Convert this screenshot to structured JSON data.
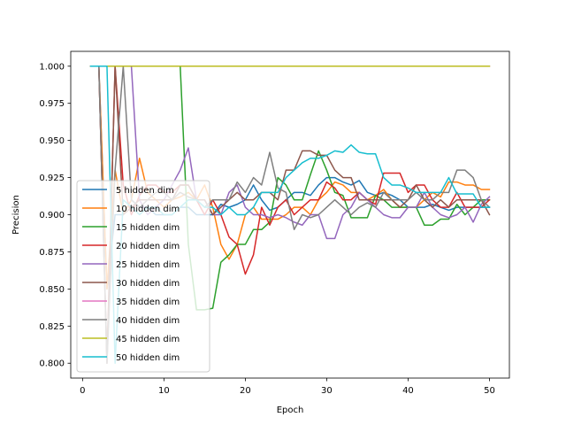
{
  "chart_data": {
    "type": "line",
    "title": "",
    "xlabel": "Epoch",
    "ylabel": "Precision",
    "xlim": [
      -1.45,
      52.45
    ],
    "ylim": [
      0.79,
      1.01
    ],
    "xticks": [
      0,
      10,
      20,
      30,
      40,
      50
    ],
    "yticks": [
      0.8,
      0.825,
      0.85,
      0.875,
      0.9,
      0.925,
      0.95,
      0.975,
      1.0
    ],
    "ytick_labels": [
      "0.800",
      "0.825",
      "0.850",
      "0.875",
      "0.900",
      "0.925",
      "0.950",
      "0.975",
      "1.000"
    ],
    "grid": false,
    "legend_position": "lower left",
    "x": [
      1,
      2,
      3,
      4,
      5,
      6,
      7,
      8,
      9,
      10,
      11,
      12,
      13,
      14,
      15,
      16,
      17,
      18,
      19,
      20,
      21,
      22,
      23,
      24,
      25,
      26,
      27,
      28,
      29,
      30,
      31,
      32,
      33,
      34,
      35,
      36,
      37,
      38,
      39,
      40,
      41,
      42,
      43,
      44,
      45,
      46,
      47,
      48,
      49,
      50
    ],
    "series": [
      {
        "name": "5 hidden dim",
        "color": "#1f77b4",
        "values": [
          1.0,
          1.0,
          0.85,
          0.9,
          0.9,
          0.91,
          0.905,
          0.905,
          0.9,
          0.9,
          0.9,
          0.905,
          0.905,
          0.9,
          0.9,
          0.9,
          0.907,
          0.905,
          0.907,
          0.91,
          0.92,
          0.91,
          0.903,
          0.905,
          0.91,
          0.915,
          0.915,
          0.913,
          0.92,
          0.925,
          0.925,
          0.922,
          0.92,
          0.923,
          0.915,
          0.913,
          0.915,
          0.913,
          0.91,
          0.905,
          0.905,
          0.905,
          0.907,
          0.905,
          0.903,
          0.905,
          0.905,
          0.905,
          0.905,
          0.905
        ]
      },
      {
        "name": "10 hidden dim",
        "color": "#ff7f0e",
        "values": [
          1.0,
          1.0,
          0.85,
          0.93,
          0.9,
          0.91,
          0.938,
          0.915,
          0.91,
          0.905,
          0.91,
          0.912,
          0.915,
          0.91,
          0.92,
          0.905,
          0.88,
          0.87,
          0.88,
          0.9,
          0.905,
          0.897,
          0.897,
          0.897,
          0.9,
          0.905,
          0.905,
          0.9,
          0.91,
          0.915,
          0.922,
          0.92,
          0.915,
          0.915,
          0.91,
          0.913,
          0.917,
          0.91,
          0.905,
          0.905,
          0.905,
          0.91,
          0.915,
          0.912,
          0.922,
          0.922,
          0.92,
          0.92,
          0.917,
          0.917
        ]
      },
      {
        "name": "15 hidden dim",
        "color": "#2ca02c",
        "values": [
          1.0,
          1.0,
          1.0,
          1.0,
          1.0,
          1.0,
          1.0,
          1.0,
          1.0,
          1.0,
          1.0,
          1.0,
          0.88,
          0.836,
          0.836,
          0.837,
          0.868,
          0.873,
          0.88,
          0.88,
          0.89,
          0.89,
          0.895,
          0.925,
          0.92,
          0.91,
          0.91,
          0.927,
          0.943,
          0.93,
          0.915,
          0.913,
          0.898,
          0.898,
          0.898,
          0.913,
          0.91,
          0.905,
          0.905,
          0.905,
          0.905,
          0.893,
          0.893,
          0.897,
          0.897,
          0.907,
          0.9,
          0.905,
          0.91,
          0.91
        ]
      },
      {
        "name": "20 hidden dim",
        "color": "#d62728",
        "values": [
          1.0,
          1.0,
          0.8,
          1.0,
          0.92,
          0.9,
          0.913,
          0.92,
          0.92,
          0.915,
          0.915,
          0.92,
          0.92,
          0.91,
          0.9,
          0.91,
          0.9,
          0.885,
          0.88,
          0.86,
          0.873,
          0.905,
          0.893,
          0.905,
          0.91,
          0.9,
          0.905,
          0.91,
          0.91,
          0.922,
          0.918,
          0.91,
          0.91,
          0.915,
          0.91,
          0.907,
          0.928,
          0.928,
          0.928,
          0.915,
          0.92,
          0.92,
          0.91,
          0.905,
          0.905,
          0.915,
          0.905,
          0.905,
          0.905,
          0.91
        ]
      },
      {
        "name": "25 hidden dim",
        "color": "#9467bd",
        "values": [
          1.0,
          1.0,
          1.0,
          1.0,
          1.0,
          1.0,
          0.91,
          0.9,
          0.905,
          0.91,
          0.92,
          0.93,
          0.945,
          0.91,
          0.91,
          0.9,
          0.9,
          0.915,
          0.92,
          0.905,
          0.9,
          0.9,
          0.898,
          0.9,
          0.898,
          0.895,
          0.893,
          0.9,
          0.9,
          0.884,
          0.884,
          0.9,
          0.905,
          0.915,
          0.91,
          0.905,
          0.9,
          0.898,
          0.898,
          0.905,
          0.905,
          0.915,
          0.905,
          0.9,
          0.898,
          0.9,
          0.905,
          0.895,
          0.907,
          0.912
        ]
      },
      {
        "name": "30 hidden dim",
        "color": "#8c564b",
        "values": [
          1.0,
          1.0,
          0.8,
          1.0,
          0.9,
          0.905,
          0.91,
          0.91,
          0.91,
          0.91,
          0.91,
          0.92,
          0.92,
          0.91,
          0.91,
          0.9,
          0.905,
          0.91,
          0.915,
          0.91,
          0.91,
          0.915,
          0.915,
          0.91,
          0.93,
          0.93,
          0.943,
          0.943,
          0.94,
          0.94,
          0.93,
          0.925,
          0.925,
          0.91,
          0.91,
          0.91,
          0.91,
          0.91,
          0.905,
          0.91,
          0.92,
          0.91,
          0.905,
          0.91,
          0.905,
          0.91,
          0.91,
          0.91,
          0.91,
          0.9
        ]
      },
      {
        "name": "35 hidden dim",
        "color": "#e377c2",
        "values": [
          1.0,
          1.0,
          1.0,
          1.0,
          1.0,
          1.0,
          1.0,
          1.0,
          1.0,
          1.0,
          1.0,
          1.0,
          1.0,
          1.0,
          1.0,
          1.0,
          1.0,
          1.0,
          1.0,
          1.0,
          1.0,
          1.0,
          1.0,
          1.0,
          1.0,
          1.0,
          1.0,
          1.0,
          1.0,
          1.0,
          1.0,
          1.0,
          1.0,
          1.0,
          1.0,
          1.0,
          1.0,
          1.0,
          1.0,
          1.0,
          1.0,
          1.0,
          1.0,
          1.0,
          1.0,
          1.0,
          1.0,
          1.0,
          1.0,
          1.0
        ]
      },
      {
        "name": "40 hidden dim",
        "color": "#7f7f7f",
        "values": [
          1.0,
          1.0,
          0.8,
          0.93,
          1.0,
          0.91,
          0.905,
          0.91,
          0.915,
          0.915,
          0.91,
          0.915,
          0.912,
          0.91,
          0.905,
          0.91,
          0.91,
          0.91,
          0.922,
          0.915,
          0.925,
          0.92,
          0.942,
          0.918,
          0.915,
          0.89,
          0.9,
          0.898,
          0.9,
          0.905,
          0.91,
          0.905,
          0.9,
          0.905,
          0.908,
          0.905,
          0.915,
          0.91,
          0.91,
          0.91,
          0.915,
          0.91,
          0.91,
          0.915,
          0.915,
          0.93,
          0.93,
          0.925,
          0.91,
          0.905
        ]
      },
      {
        "name": "45 hidden dim",
        "color": "#bcbd22",
        "values": [
          1.0,
          1.0,
          1.0,
          1.0,
          1.0,
          1.0,
          1.0,
          1.0,
          1.0,
          1.0,
          1.0,
          1.0,
          1.0,
          1.0,
          1.0,
          1.0,
          1.0,
          1.0,
          1.0,
          1.0,
          1.0,
          1.0,
          1.0,
          1.0,
          1.0,
          1.0,
          1.0,
          1.0,
          1.0,
          1.0,
          1.0,
          1.0,
          1.0,
          1.0,
          1.0,
          1.0,
          1.0,
          1.0,
          1.0,
          1.0,
          1.0,
          1.0,
          1.0,
          1.0,
          1.0,
          1.0,
          1.0,
          1.0,
          1.0,
          1.0
        ]
      },
      {
        "name": "50 hidden dim",
        "color": "#17becf",
        "values": [
          1.0,
          1.0,
          1.0,
          0.8,
          0.91,
          0.905,
          0.9,
          0.905,
          0.905,
          0.9,
          0.9,
          0.905,
          0.91,
          0.91,
          0.905,
          0.905,
          0.9,
          0.905,
          0.9,
          0.9,
          0.905,
          0.915,
          0.915,
          0.915,
          0.925,
          0.93,
          0.935,
          0.938,
          0.938,
          0.94,
          0.943,
          0.942,
          0.947,
          0.942,
          0.941,
          0.941,
          0.925,
          0.92,
          0.92,
          0.918,
          0.915,
          0.915,
          0.915,
          0.915,
          0.925,
          0.914,
          0.914,
          0.914,
          0.905,
          0.905
        ]
      }
    ]
  }
}
